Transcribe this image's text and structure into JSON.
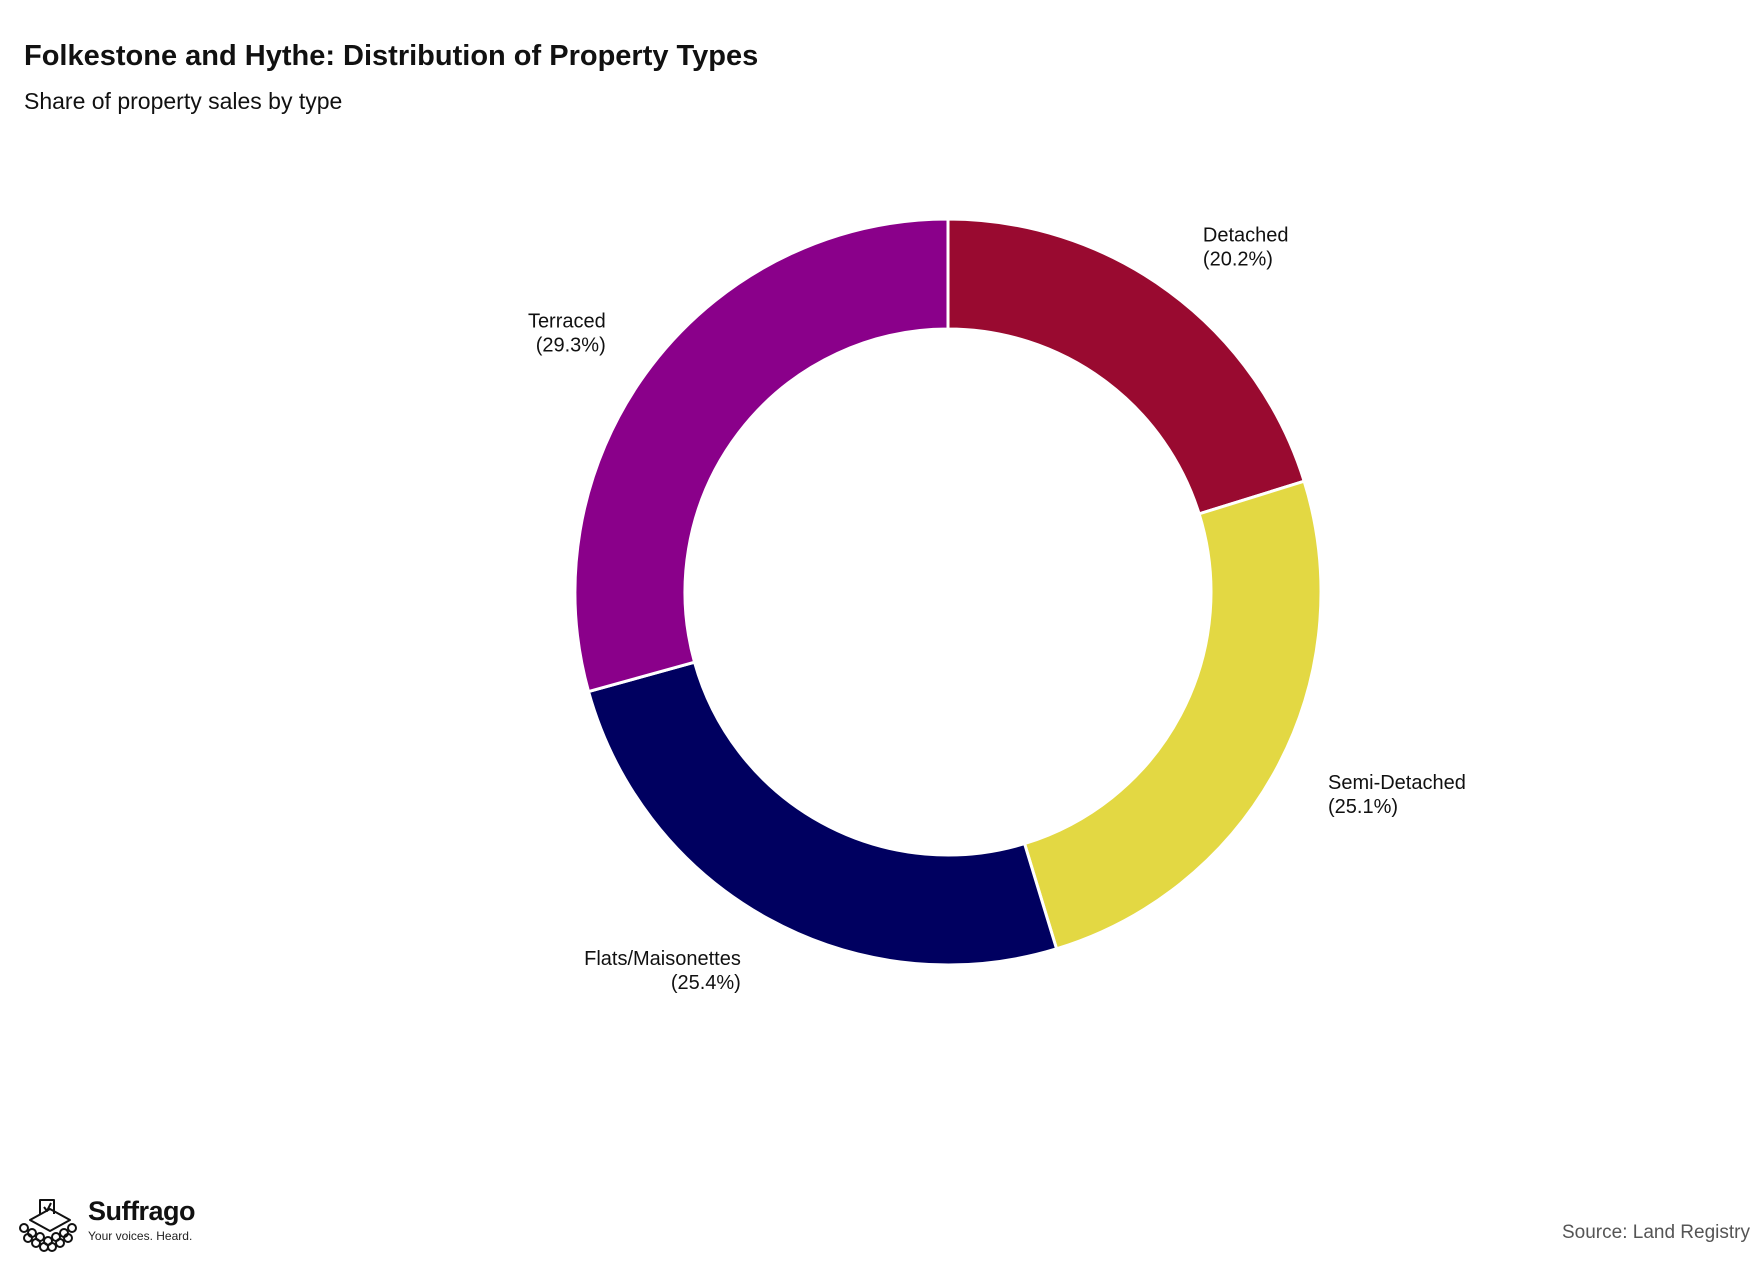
{
  "chart_data": {
    "type": "pie",
    "variant": "donut",
    "title": "Folkestone and Hythe: Distribution of Property Types",
    "subtitle": "Share of property sales by type",
    "categories": [
      "Detached",
      "Semi-Detached",
      "Flats/Maisonettes",
      "Terraced"
    ],
    "values": [
      20.2,
      25.1,
      25.4,
      29.3
    ],
    "value_labels": [
      "(20.2%)",
      "(25.1%)",
      "(25.4%)",
      "(29.3%)"
    ],
    "colors": [
      "#990a30",
      "#e3d843",
      "#000060",
      "#8a008a"
    ],
    "unit": "%",
    "start_angle": "12 o'clock",
    "direction": "clockwise",
    "legend": "none"
  },
  "footer": {
    "brand_name": "Suffrago",
    "brand_tagline": "Your voices. Heard.",
    "source": "Source: Land Registry"
  },
  "icons": {
    "logo": "ballot-box-with-crowd-icon"
  }
}
